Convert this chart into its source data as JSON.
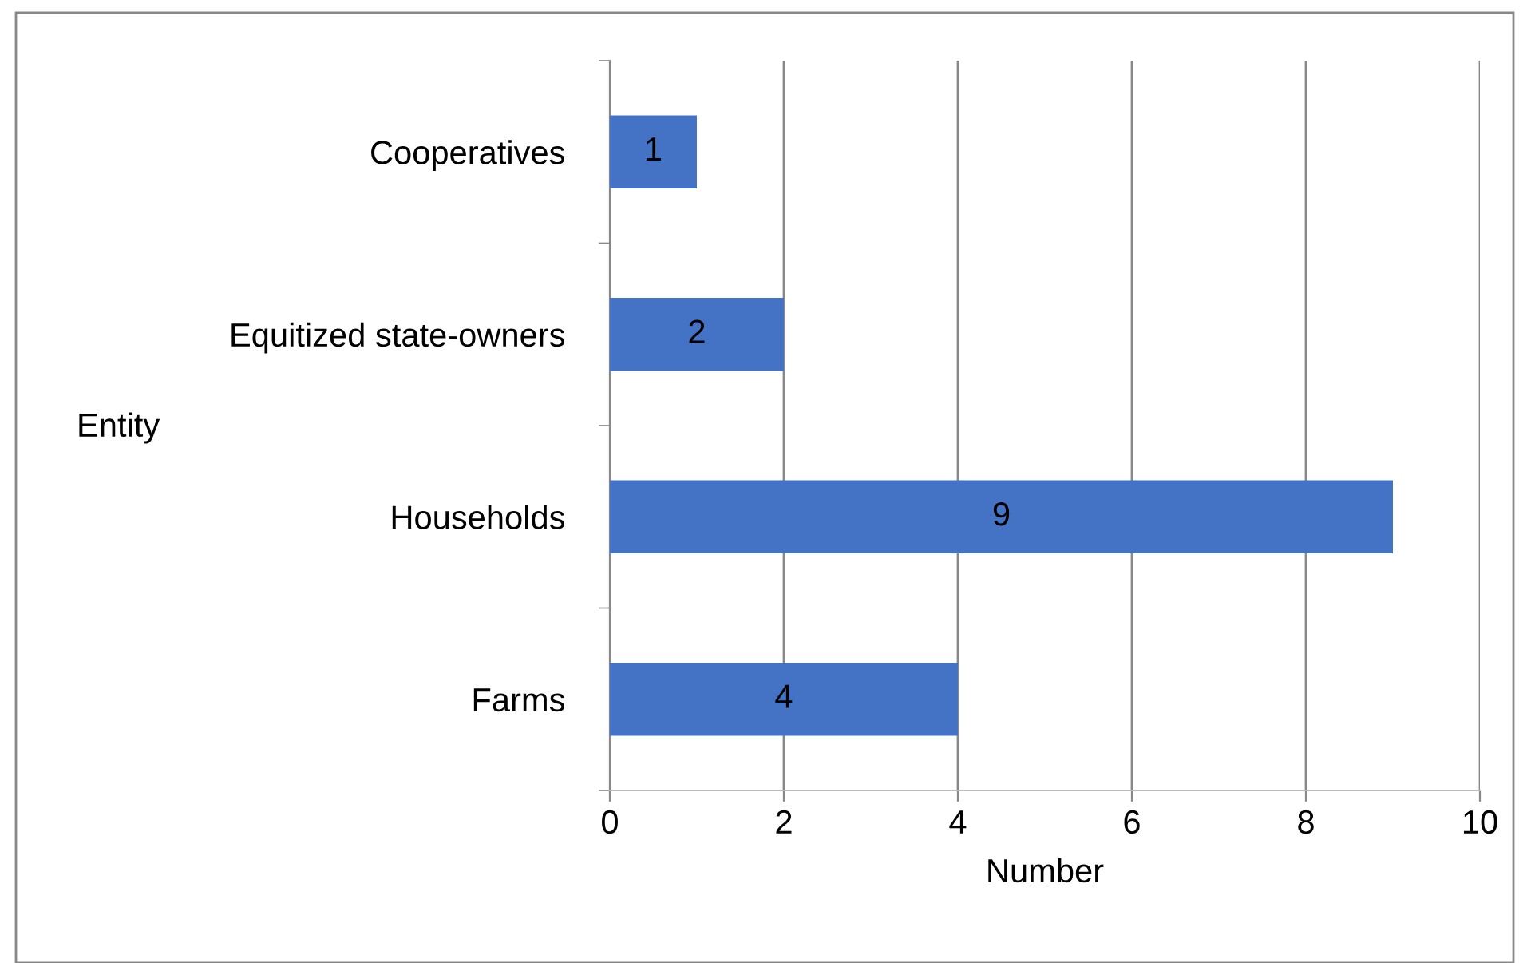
{
  "chart_data": {
    "type": "bar",
    "orientation": "horizontal",
    "categories": [
      "Cooperatives",
      "Equitized state-owners",
      "Households",
      "Farms"
    ],
    "values": [
      1,
      2,
      9,
      4
    ],
    "color": "#4472c4",
    "xlabel": "Number",
    "ylabel": "Entity",
    "xlim": [
      0,
      10
    ],
    "xticks": [
      0,
      2,
      4,
      6,
      8,
      10
    ],
    "grid": "x",
    "data_labels": true
  }
}
